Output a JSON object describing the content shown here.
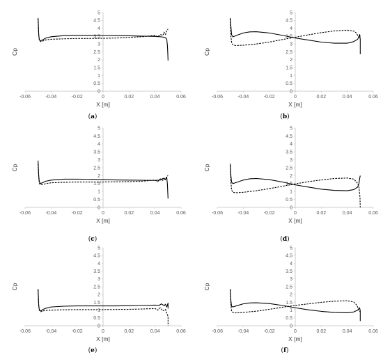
{
  "chart_data": [
    {
      "type": "line",
      "panel": "(a)",
      "panel_letter": "a",
      "xlabel": "X [m]",
      "ylabel": "Cp",
      "xlim": [
        -0.06,
        0.06
      ],
      "ylim": [
        0,
        5
      ],
      "xticks": [
        "-0.06",
        "-0.04",
        "-0.02",
        "0",
        "0.02",
        "0.04",
        "0.06"
      ],
      "yticks": [
        "0",
        "0.5",
        "1",
        "1.5",
        "2",
        "2.5",
        "3",
        "3.5",
        "4",
        "4.5",
        "5"
      ],
      "series": [
        {
          "style": "solid",
          "x": [
            -0.05,
            -0.0495,
            -0.049,
            -0.048,
            -0.046,
            -0.044,
            -0.04,
            -0.03,
            -0.02,
            -0.01,
            0,
            0.01,
            0.02,
            0.03,
            0.04,
            0.044,
            0.046,
            0.048,
            0.049,
            0.0495,
            0.0498,
            0.05
          ],
          "y": [
            4.65,
            3.6,
            3.25,
            3.2,
            3.28,
            3.38,
            3.46,
            3.53,
            3.55,
            3.55,
            3.54,
            3.53,
            3.52,
            3.5,
            3.48,
            3.46,
            3.44,
            3.4,
            3.3,
            2.9,
            2.4,
            1.95
          ]
        },
        {
          "style": "dashed",
          "x": [
            -0.05,
            -0.0495,
            -0.049,
            -0.048,
            -0.046,
            -0.044,
            -0.04,
            -0.03,
            -0.02,
            -0.01,
            0,
            0.01,
            0.02,
            0.03,
            0.04,
            0.042,
            0.044,
            0.046,
            0.047,
            0.048,
            0.049,
            0.05
          ],
          "y": [
            4.6,
            3.6,
            3.25,
            3.15,
            3.2,
            3.26,
            3.3,
            3.33,
            3.35,
            3.35,
            3.36,
            3.38,
            3.42,
            3.46,
            3.55,
            3.45,
            3.6,
            3.55,
            3.75,
            3.6,
            3.85,
            3.95
          ]
        }
      ]
    },
    {
      "type": "line",
      "panel": "(b)",
      "panel_letter": "b",
      "xlabel": "X [m]",
      "ylabel": "Cp",
      "xlim": [
        -0.06,
        0.06
      ],
      "ylim": [
        0,
        5
      ],
      "xticks": [
        "-0.06",
        "-0.04",
        "-0.02",
        "0",
        "0.02",
        "0.04",
        "0.06"
      ],
      "yticks": [
        "0",
        "0.5",
        "1",
        "1.5",
        "2",
        "2.5",
        "3",
        "3.5",
        "4",
        "4.5",
        "5"
      ],
      "series": [
        {
          "style": "solid",
          "x": [
            -0.05,
            -0.0495,
            -0.049,
            -0.048,
            -0.045,
            -0.04,
            -0.035,
            -0.03,
            -0.02,
            -0.01,
            0,
            0.01,
            0.02,
            0.03,
            0.04,
            0.045,
            0.048,
            0.049,
            0.0495,
            0.05,
            0.05
          ],
          "y": [
            4.65,
            4.1,
            3.6,
            3.45,
            3.55,
            3.7,
            3.77,
            3.78,
            3.7,
            3.55,
            3.38,
            3.25,
            3.12,
            3.05,
            3.05,
            3.15,
            3.3,
            3.45,
            3.6,
            3.3,
            2.35
          ]
        },
        {
          "style": "dashed",
          "x": [
            -0.05,
            -0.0495,
            -0.049,
            -0.048,
            -0.046,
            -0.04,
            -0.03,
            -0.02,
            -0.01,
            0,
            0.01,
            0.02,
            0.03,
            0.04,
            0.045,
            0.047,
            0.048,
            0.049,
            0.05
          ],
          "y": [
            4.6,
            3.5,
            3.1,
            2.95,
            2.9,
            2.92,
            3.0,
            3.12,
            3.28,
            3.43,
            3.58,
            3.72,
            3.83,
            3.88,
            3.82,
            3.7,
            3.55,
            3.4,
            3.55
          ]
        }
      ]
    },
    {
      "type": "line",
      "panel": "(c)",
      "panel_letter": "c",
      "xlabel": "X [m]",
      "ylabel": "Cp",
      "xlim": [
        -0.06,
        0.06
      ],
      "ylim": [
        0,
        5
      ],
      "xticks": [
        "-0.06",
        "-0.04",
        "-0.02",
        "0",
        "0.02",
        "0.04",
        "0.06"
      ],
      "yticks": [
        "0",
        "0.5",
        "1",
        "1.5",
        "2",
        "2.5",
        "3",
        "3.5",
        "4",
        "4.5",
        "5"
      ],
      "series": [
        {
          "style": "solid",
          "x": [
            -0.05,
            -0.0495,
            -0.049,
            -0.048,
            -0.046,
            -0.044,
            -0.04,
            -0.03,
            -0.02,
            -0.01,
            0,
            0.01,
            0.02,
            0.03,
            0.04,
            0.044,
            0.046,
            0.048,
            0.049,
            0.0495,
            0.05
          ],
          "y": [
            2.95,
            2.0,
            1.6,
            1.5,
            1.58,
            1.65,
            1.72,
            1.78,
            1.78,
            1.77,
            1.75,
            1.73,
            1.72,
            1.71,
            1.7,
            1.72,
            1.82,
            1.75,
            1.9,
            1.45,
            0.55
          ]
        },
        {
          "style": "dashed",
          "x": [
            -0.05,
            -0.0495,
            -0.049,
            -0.048,
            -0.046,
            -0.044,
            -0.04,
            -0.03,
            -0.02,
            -0.01,
            0,
            0.01,
            0.02,
            0.03,
            0.04,
            0.042,
            0.044,
            0.046,
            0.047,
            0.048,
            0.049,
            0.05
          ],
          "y": [
            2.75,
            1.9,
            1.5,
            1.42,
            1.45,
            1.5,
            1.55,
            1.58,
            1.6,
            1.6,
            1.6,
            1.61,
            1.62,
            1.65,
            1.72,
            1.62,
            1.8,
            1.7,
            1.88,
            1.75,
            1.95,
            2.0
          ]
        }
      ]
    },
    {
      "type": "line",
      "panel": "(d)",
      "panel_letter": "d",
      "xlabel": "X [m]",
      "ylabel": "Cp",
      "xlim": [
        -0.06,
        0.06
      ],
      "ylim": [
        0,
        5
      ],
      "xticks": [
        "-0.06",
        "-0.04",
        "-0.02",
        "0",
        "0.02",
        "0.04",
        "0.06"
      ],
      "yticks": [
        "0",
        "0.5",
        "1",
        "1.5",
        "2",
        "2.5",
        "3",
        "3.5",
        "4",
        "4.5",
        "5"
      ],
      "series": [
        {
          "style": "solid",
          "x": [
            -0.05,
            -0.0495,
            -0.049,
            -0.048,
            -0.045,
            -0.04,
            -0.035,
            -0.03,
            -0.02,
            -0.01,
            0,
            0.01,
            0.02,
            0.03,
            0.04,
            0.045,
            0.048,
            0.049,
            0.0495,
            0.05
          ],
          "y": [
            2.75,
            2.0,
            1.6,
            1.5,
            1.58,
            1.72,
            1.8,
            1.82,
            1.75,
            1.6,
            1.42,
            1.28,
            1.15,
            1.07,
            1.05,
            1.12,
            1.28,
            1.5,
            1.8,
            2.0
          ]
        },
        {
          "style": "dashed",
          "x": [
            -0.05,
            -0.0495,
            -0.049,
            -0.048,
            -0.046,
            -0.04,
            -0.03,
            -0.02,
            -0.01,
            0,
            0.01,
            0.02,
            0.03,
            0.04,
            0.045,
            0.047,
            0.048,
            0.049,
            0.0498,
            0.05
          ],
          "y": [
            2.65,
            1.6,
            1.1,
            0.95,
            0.92,
            0.95,
            1.05,
            1.18,
            1.33,
            1.48,
            1.62,
            1.73,
            1.82,
            1.85,
            1.78,
            1.62,
            1.5,
            1.3,
            0.6,
            0.0
          ]
        }
      ]
    },
    {
      "type": "line",
      "panel": "(e)",
      "panel_letter": "e",
      "xlabel": "X [m]",
      "ylabel": "Cp",
      "xlim": [
        -0.06,
        0.06
      ],
      "ylim": [
        0,
        5
      ],
      "xticks": [
        "-0.06",
        "-0.04",
        "-0.02",
        "0",
        "0.02",
        "0.04",
        "0.06"
      ],
      "yticks": [
        "0",
        "0.5",
        "1",
        "1.5",
        "2",
        "2.5",
        "3",
        "3.5",
        "4",
        "4.5",
        "5"
      ],
      "series": [
        {
          "style": "solid",
          "x": [
            -0.05,
            -0.0495,
            -0.049,
            -0.048,
            -0.046,
            -0.044,
            -0.04,
            -0.03,
            -0.02,
            -0.01,
            0,
            0.01,
            0.02,
            0.03,
            0.04,
            0.043,
            0.045,
            0.047,
            0.048,
            0.049,
            0.05,
            0.05
          ],
          "y": [
            2.35,
            1.3,
            1.0,
            0.95,
            1.05,
            1.12,
            1.2,
            1.25,
            1.27,
            1.27,
            1.27,
            1.27,
            1.28,
            1.3,
            1.32,
            1.3,
            1.4,
            1.28,
            1.38,
            1.2,
            1.45,
            1.1
          ]
        },
        {
          "style": "dashed",
          "x": [
            -0.05,
            -0.0495,
            -0.049,
            -0.048,
            -0.046,
            -0.044,
            -0.04,
            -0.03,
            -0.02,
            -0.01,
            0,
            0.01,
            0.02,
            0.03,
            0.04,
            0.042,
            0.044,
            0.046,
            0.048,
            0.049,
            0.05,
            0.05
          ],
          "y": [
            2.3,
            1.3,
            0.98,
            0.9,
            0.95,
            0.98,
            1.0,
            1.02,
            1.03,
            1.03,
            1.03,
            1.04,
            1.05,
            1.07,
            1.1,
            1.0,
            1.15,
            0.95,
            1.05,
            0.8,
            0.6,
            0.0
          ]
        }
      ]
    },
    {
      "type": "line",
      "panel": "(f)",
      "panel_letter": "f",
      "xlabel": "X [m]",
      "ylabel": "Cp",
      "xlim": [
        -0.06,
        0.06
      ],
      "ylim": [
        0,
        5
      ],
      "xticks": [
        "-0.06",
        "-0.04",
        "-0.02",
        "0",
        "0.02",
        "0.04",
        "0.06"
      ],
      "yticks": [
        "0",
        "0.5",
        "1",
        "1.5",
        "2",
        "2.5",
        "3",
        "3.5",
        "4",
        "4.5",
        "5"
      ],
      "series": [
        {
          "style": "solid",
          "x": [
            -0.05,
            -0.0495,
            -0.049,
            -0.048,
            -0.045,
            -0.04,
            -0.035,
            -0.03,
            -0.02,
            -0.01,
            0,
            0.01,
            0.02,
            0.03,
            0.04,
            0.045,
            0.048,
            0.049,
            0.0495,
            0.05,
            0.05
          ],
          "y": [
            2.35,
            1.6,
            1.25,
            1.2,
            1.28,
            1.4,
            1.46,
            1.47,
            1.42,
            1.3,
            1.15,
            1.02,
            0.92,
            0.85,
            0.83,
            0.88,
            1.0,
            1.1,
            1.15,
            0.95,
            0.3
          ]
        },
        {
          "style": "dashed",
          "x": [
            -0.05,
            -0.0495,
            -0.049,
            -0.048,
            -0.046,
            -0.04,
            -0.03,
            -0.02,
            -0.01,
            0,
            0.01,
            0.02,
            0.03,
            0.04,
            0.045,
            0.047,
            0.048,
            0.049,
            0.05
          ],
          "y": [
            2.3,
            1.3,
            0.95,
            0.85,
            0.82,
            0.85,
            0.93,
            1.05,
            1.18,
            1.3,
            1.4,
            1.5,
            1.57,
            1.6,
            1.52,
            1.35,
            1.2,
            0.95,
            0.9
          ]
        }
      ]
    }
  ]
}
